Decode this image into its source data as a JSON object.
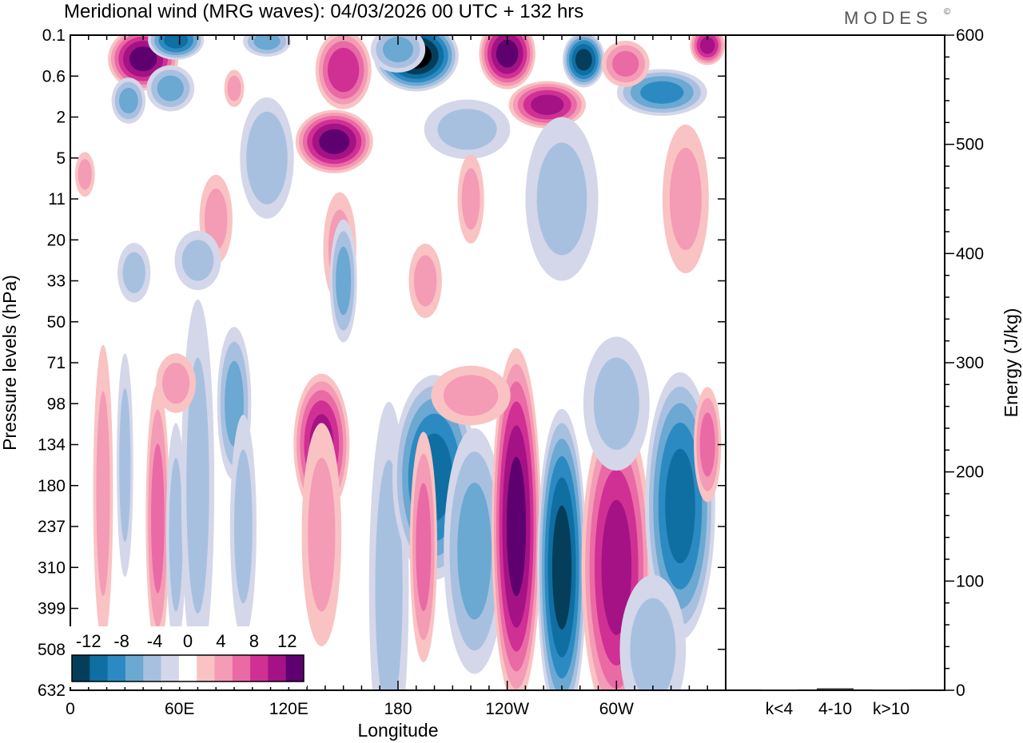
{
  "header": {
    "title": "Meridional wind (MRG waves):  04/03/2026  00 UTC  + 132 hrs",
    "brand": "MODES",
    "brand_mark": "©"
  },
  "chart_data": [
    {
      "type": "heatmap",
      "title": "Meridional wind (MRG waves)",
      "xlabel": "Longitude",
      "ylabel": "Pressure levels (hPa)",
      "x_ticks": [
        "0",
        "60E",
        "120E",
        "180",
        "120W",
        "60W"
      ],
      "x_tick_values": [
        0,
        60,
        120,
        180,
        240,
        300
      ],
      "xlim": [
        0,
        360
      ],
      "y_levels": [
        "0.1",
        "0.6",
        "2",
        "5",
        "11",
        "20",
        "33",
        "50",
        "71",
        "98",
        "134",
        "180",
        "237",
        "310",
        "399",
        "508",
        "632"
      ],
      "colorbar": {
        "labels": [
          "-12",
          "-8",
          "-4",
          "0",
          "4",
          "8",
          "12"
        ],
        "label_values": [
          -12,
          -8,
          -4,
          0,
          4,
          8,
          12
        ],
        "bin_edges": [
          -14,
          -12,
          -10,
          -8,
          -6,
          -4,
          -2,
          2,
          4,
          6,
          8,
          10,
          12,
          14
        ],
        "colors": [
          "#053e5b",
          "#0f6ea2",
          "#2b8ac2",
          "#6ba8d2",
          "#a8c0e0",
          "#d4d7e9",
          "#ffffff",
          "#f9c3c3",
          "#f49bb5",
          "#ea6aa5",
          "#d02f94",
          "#a41285",
          "#5f0070"
        ]
      },
      "contours": [
        {
          "x": 40,
          "y": 0.58,
          "v": 12,
          "w": 20,
          "h": 0.8
        },
        {
          "x": 58,
          "y": 0.12,
          "v": -10,
          "w": 16,
          "h": 0.5
        },
        {
          "x": 32,
          "y": 1.6,
          "v": -6,
          "w": 10,
          "h": 0.6
        },
        {
          "x": 55,
          "y": 1.3,
          "v": -6,
          "w": 14,
          "h": 0.6
        },
        {
          "x": 90,
          "y": 1.3,
          "v": 4,
          "w": 6,
          "h": 0.5
        },
        {
          "x": 150,
          "y": 0.85,
          "v": 9,
          "w": 16,
          "h": 1.0
        },
        {
          "x": 145,
          "y": 2.6,
          "v": 12,
          "w": 22,
          "h": 0.8
        },
        {
          "x": 108,
          "y": 3.0,
          "v": -5,
          "w": 16,
          "h": 1.6
        },
        {
          "x": 148,
          "y": 5.2,
          "v": 4,
          "w": 10,
          "h": 1.5
        },
        {
          "x": 190,
          "y": 0.5,
          "v": -14,
          "w": 24,
          "h": 0.9
        },
        {
          "x": 240,
          "y": 0.45,
          "v": 12,
          "w": 16,
          "h": 0.9
        },
        {
          "x": 282,
          "y": 0.6,
          "v": -12,
          "w": 12,
          "h": 0.7
        },
        {
          "x": 262,
          "y": 1.7,
          "v": 10,
          "w": 22,
          "h": 0.6
        },
        {
          "x": 325,
          "y": 1.4,
          "v": -8,
          "w": 26,
          "h": 0.6
        },
        {
          "x": 305,
          "y": 0.7,
          "v": 6,
          "w": 14,
          "h": 0.6
        },
        {
          "x": 218,
          "y": 2.3,
          "v": -4,
          "w": 26,
          "h": 0.8
        },
        {
          "x": 180,
          "y": 0.35,
          "v": -6,
          "w": 16,
          "h": 0.6
        },
        {
          "x": 350,
          "y": 0.25,
          "v": 10,
          "w": 10,
          "h": 0.5
        },
        {
          "x": 108,
          "y": 0.15,
          "v": -6,
          "w": 14,
          "h": 0.4
        },
        {
          "x": 80,
          "y": 4.5,
          "v": 4,
          "w": 10,
          "h": 1.2
        },
        {
          "x": 338,
          "y": 4.0,
          "v": 4,
          "w": 14,
          "h": 2.0
        },
        {
          "x": 270,
          "y": 4.0,
          "v": -4,
          "w": 22,
          "h": 2.2
        },
        {
          "x": 220,
          "y": 4.0,
          "v": 4,
          "w": 8,
          "h": 1.2
        },
        {
          "x": 195,
          "y": 6.0,
          "v": 4,
          "w": 10,
          "h": 1.0
        },
        {
          "x": 70,
          "y": 5.5,
          "v": -4,
          "w": 14,
          "h": 0.8
        },
        {
          "x": 35,
          "y": 5.8,
          "v": -4,
          "w": 10,
          "h": 0.8
        },
        {
          "x": 150,
          "y": 6.0,
          "v": -6,
          "w": 8,
          "h": 1.6
        },
        {
          "x": 8,
          "y": 3.4,
          "v": 4,
          "w": 6,
          "h": 0.6
        },
        {
          "x": 18,
          "y": 11.2,
          "v": 4,
          "w": 6,
          "h": 4.0
        },
        {
          "x": 30,
          "y": 10.5,
          "v": -4,
          "w": 5,
          "h": 3.0
        },
        {
          "x": 48,
          "y": 11.8,
          "v": 6,
          "w": 7,
          "h": 3.5
        },
        {
          "x": 58,
          "y": 12.2,
          "v": -4,
          "w": 6,
          "h": 3.0
        },
        {
          "x": 70,
          "y": 11.0,
          "v": -4,
          "w": 10,
          "h": 5.0
        },
        {
          "x": 90,
          "y": 9.0,
          "v": -6,
          "w": 10,
          "h": 2.0
        },
        {
          "x": 95,
          "y": 12.0,
          "v": -4,
          "w": 8,
          "h": 3.0
        },
        {
          "x": 138,
          "y": 10.0,
          "v": 10,
          "w": 16,
          "h": 1.8
        },
        {
          "x": 138,
          "y": 12.2,
          "v": 4,
          "w": 12,
          "h": 3.0
        },
        {
          "x": 58,
          "y": 8.5,
          "v": 4,
          "w": 12,
          "h": 0.8
        },
        {
          "x": 175,
          "y": 13.5,
          "v": -4,
          "w": 12,
          "h": 5.0
        },
        {
          "x": 200,
          "y": 10.8,
          "v": -10,
          "w": 24,
          "h": 2.6
        },
        {
          "x": 222,
          "y": 12.6,
          "v": -6,
          "w": 18,
          "h": 3.2
        },
        {
          "x": 194,
          "y": 12.5,
          "v": 6,
          "w": 8,
          "h": 3.0
        },
        {
          "x": 245,
          "y": 12.0,
          "v": 12,
          "w": 14,
          "h": 4.5
        },
        {
          "x": 270,
          "y": 13.0,
          "v": -12,
          "w": 14,
          "h": 4.0
        },
        {
          "x": 300,
          "y": 13.0,
          "v": 10,
          "w": 20,
          "h": 4.0
        },
        {
          "x": 335,
          "y": 11.5,
          "v": -10,
          "w": 20,
          "h": 3.4
        },
        {
          "x": 350,
          "y": 10.0,
          "v": 6,
          "w": 8,
          "h": 1.5
        },
        {
          "x": 300,
          "y": 9.0,
          "v": -4,
          "w": 20,
          "h": 1.8
        },
        {
          "x": 220,
          "y": 8.8,
          "v": 4,
          "w": 24,
          "h": 0.8
        },
        {
          "x": 320,
          "y": 15.0,
          "v": -4,
          "w": 20,
          "h": 2.0
        }
      ]
    },
    {
      "type": "bar",
      "categories": [
        "k<4",
        "4-10",
        "k>10"
      ],
      "values": [
        0,
        1,
        0
      ],
      "ylabel": "Energy (J/kg)",
      "ylim": [
        0,
        600
      ],
      "y_ticks": [
        "0",
        "100",
        "200",
        "300",
        "400",
        "500",
        "600"
      ],
      "y_tick_values": [
        0,
        100,
        200,
        300,
        400,
        500,
        600
      ]
    }
  ]
}
